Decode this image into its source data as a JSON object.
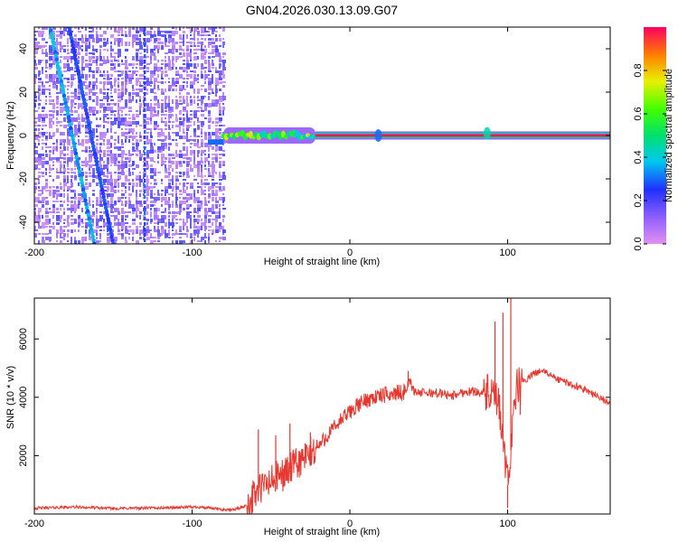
{
  "title": "GN04.2026.030.13.09.G07",
  "chart_data": [
    {
      "type": "heatmap",
      "name": "spectrogram",
      "xlabel": "Height of straight line (km)",
      "ylabel": "Frequency (Hz)",
      "xlim": [
        -200,
        165
      ],
      "ylim": [
        -50,
        50
      ],
      "xticks": [
        -200,
        -100,
        0,
        100
      ],
      "yticks": [
        -40,
        -20,
        0,
        20,
        40
      ],
      "colorbar": {
        "label": "Normalized spectral amplitude",
        "range": [
          0,
          1
        ],
        "ticks": [
          "0.0",
          "0.2",
          "0.4",
          "0.6",
          "0.8"
        ],
        "tick_values": [
          0,
          0.2,
          0.4,
          0.6,
          0.8
        ]
      },
      "noise_region": {
        "x_from": -200,
        "x_to": -80,
        "amplitude": 0.15
      },
      "diagonal_streaks": [
        {
          "x_start": -190,
          "y_start": 50,
          "x_end": -162,
          "y_end": -50
        },
        {
          "x_start": -178,
          "y_start": 50,
          "x_end": -150,
          "y_end": -50
        }
      ],
      "vertical_streak": {
        "x": -130,
        "y_from": -50,
        "y_to": 50
      },
      "tone_segments": [
        {
          "x_from": -90,
          "x_to": -80,
          "freq": -3,
          "amplitude": 0.3
        },
        {
          "x_from": -80,
          "x_to": -22,
          "freq": 0,
          "amplitude": 0.55
        },
        {
          "x_from": -22,
          "x_to": 165,
          "freq": 0,
          "amplitude": 0.95
        }
      ],
      "bursts": [
        {
          "x": 18,
          "freq": 0,
          "amplitude": 0.3
        },
        {
          "x": 87,
          "freq": 1,
          "amplitude": 0.45
        }
      ]
    },
    {
      "type": "line",
      "name": "snr",
      "xlabel": "Height of straight line (km)",
      "ylabel": "SNR (10 * v/v)",
      "xlim": [
        -200,
        165
      ],
      "ylim": [
        0,
        7400
      ],
      "xticks": [
        -200,
        -100,
        0,
        100
      ],
      "yticks": [
        2000,
        4000,
        6000
      ],
      "color": "#e8372f",
      "series": [
        {
          "name": "SNR",
          "x": [
            -200,
            -175,
            -150,
            -120,
            -96,
            -90,
            -85,
            -80,
            -75,
            -70,
            -65,
            -60,
            -55,
            -50,
            -45,
            -40,
            -35,
            -30,
            -25,
            -20,
            -15,
            -10,
            -5,
            0,
            5,
            10,
            15,
            20,
            25,
            30,
            35,
            38,
            40,
            45,
            50,
            55,
            60,
            65,
            70,
            75,
            80,
            85,
            90,
            95,
            98,
            100,
            102,
            104,
            106,
            110,
            115,
            120,
            125,
            130,
            140,
            150,
            160,
            165
          ],
          "y": [
            200,
            240,
            190,
            210,
            240,
            210,
            180,
            150,
            140,
            200,
            300,
            700,
            950,
            1100,
            1280,
            1450,
            1650,
            1850,
            2050,
            2300,
            2650,
            2950,
            3250,
            3500,
            3720,
            3900,
            4000,
            4050,
            4100,
            4150,
            4200,
            4600,
            4250,
            4150,
            4150,
            4150,
            4100,
            4050,
            4150,
            4200,
            4200,
            4150,
            4050,
            3600,
            2000,
            1000,
            2200,
            4000,
            4300,
            4500,
            4750,
            4900,
            4850,
            4650,
            4450,
            4250,
            3950,
            3750
          ]
        }
      ],
      "spikes": [
        {
          "x": -58,
          "y": 2900
        },
        {
          "x": -47,
          "y": 2700
        },
        {
          "x": -38,
          "y": 3100
        },
        {
          "x": -25,
          "y": 2800
        },
        {
          "x": 37,
          "y": 4900
        },
        {
          "x": 92,
          "y": 6600
        },
        {
          "x": 97,
          "y": 6900
        },
        {
          "x": 100,
          "y": 200
        },
        {
          "x": 102,
          "y": 7400
        },
        {
          "x": 108,
          "y": 3400
        }
      ]
    }
  ]
}
